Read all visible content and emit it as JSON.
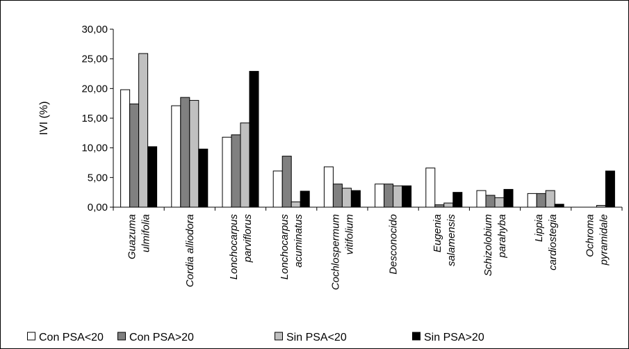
{
  "chart_data": {
    "type": "bar",
    "ylabel": "IVI (%)",
    "xlabel": "",
    "ylim": [
      0,
      30
    ],
    "ytick_step": 5,
    "ytick_labels": [
      "0,00",
      "5,00",
      "10,00",
      "15,00",
      "20,00",
      "25,00",
      "30,00"
    ],
    "grid": false,
    "legend_position": "bottom",
    "categories": [
      [
        "Guazuma",
        "ulmifolia"
      ],
      [
        "Cordia alliodora"
      ],
      [
        "Lonchocarpus",
        "parviflorus"
      ],
      [
        "Lonchocarpus",
        "acuminatus"
      ],
      [
        "Cochlospermum",
        "vitifolium"
      ],
      [
        "Desconocido"
      ],
      [
        "Eugenia",
        "salamensis"
      ],
      [
        "Schizolobium",
        "parahyba"
      ],
      [
        "Lippia",
        "cardiostegia"
      ],
      [
        "Ochroma",
        "pyramidale"
      ]
    ],
    "series": [
      {
        "name": "Con PSA<20",
        "color": "#ffffff",
        "values": [
          19.8,
          17.1,
          11.8,
          6.1,
          6.8,
          3.9,
          6.6,
          2.8,
          2.3,
          0.0
        ]
      },
      {
        "name": "Con PSA>20",
        "color": "#808080",
        "values": [
          17.4,
          18.5,
          12.2,
          8.6,
          3.9,
          3.9,
          0.4,
          2.0,
          2.3,
          0.0
        ]
      },
      {
        "name": "Sin PSA<20",
        "color": "#c0c0c0",
        "values": [
          25.9,
          18.0,
          14.2,
          0.9,
          3.2,
          3.6,
          0.7,
          1.6,
          2.8,
          0.3
        ]
      },
      {
        "name": "Sin PSA>20",
        "color": "#000000",
        "values": [
          10.2,
          9.8,
          22.9,
          2.7,
          2.8,
          3.6,
          2.5,
          3.0,
          0.5,
          6.1
        ]
      }
    ]
  }
}
